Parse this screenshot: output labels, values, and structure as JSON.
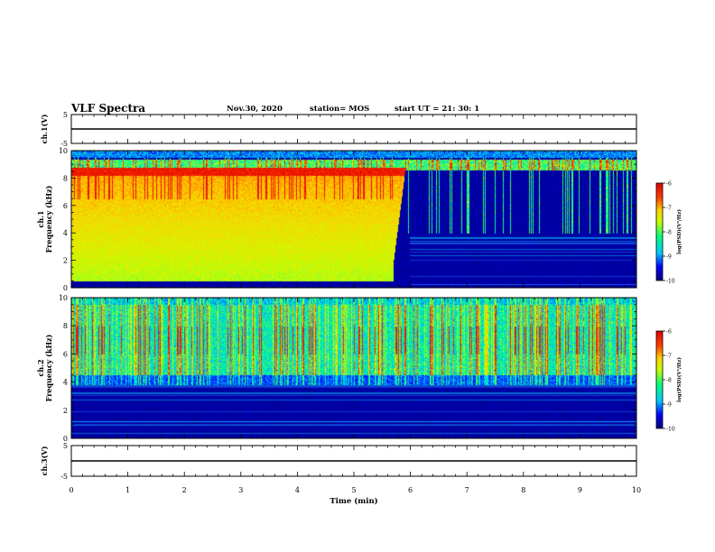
{
  "header": {
    "title": "VLF Spectra",
    "date": "Nov.30, 2020",
    "station": "station= MOS",
    "start": "start  UT  =   21: 30: 1"
  },
  "colors": {
    "spectrogram_scale": [
      "#00007a",
      "#0000ff",
      "#00c8ff",
      "#00ff80",
      "#c8ff00",
      "#ffd000",
      "#ff4000",
      "#e00000"
    ],
    "frame": "#000000"
  },
  "chart_data": [
    {
      "type": "line",
      "name": "ch1-waveform",
      "ylabel": "ch.1(V)",
      "ylim": [
        -5,
        5
      ],
      "yticks": [
        "5",
        "-5"
      ],
      "x": [
        0,
        10
      ],
      "y": [
        0,
        0
      ]
    },
    {
      "type": "heatmap",
      "name": "ch1-spectrogram",
      "ylabel": "ch.1\nFrequency (kHz)",
      "xlim": [
        0,
        10
      ],
      "ylim": [
        0,
        10
      ],
      "yticks": [
        "0",
        "2",
        "4",
        "6",
        "8",
        "10"
      ],
      "colorbar": {
        "label": "log(PSD)(V²/Hz)",
        "range": [
          -10,
          -6
        ],
        "ticks": [
          "-6",
          "-7",
          "-8",
          "-9",
          "-10"
        ]
      },
      "description_regions": {
        "noise_band_until_min": 5.7,
        "noise_band_khz": [
          0.5,
          8.8
        ],
        "quiet_after_min": 5.9
      }
    },
    {
      "type": "heatmap",
      "name": "ch2-spectrogram",
      "ylabel": "ch.2\nFrequency (kHz)",
      "xlim": [
        0,
        10
      ],
      "ylim": [
        0,
        10
      ],
      "yticks": [
        "0",
        "2",
        "4",
        "6",
        "8",
        "10"
      ],
      "colorbar": {
        "label": "log(PSD)(V²/Hz)",
        "range": [
          -10,
          -6
        ],
        "ticks": [
          "-6",
          "-7",
          "-8",
          "-9",
          "-10"
        ]
      },
      "description_regions": {
        "emission_band_khz": [
          4.5,
          9.5
        ]
      }
    },
    {
      "type": "line",
      "name": "ch3-waveform",
      "ylabel": "ch.3(V)",
      "ylim": [
        -5,
        5
      ],
      "yticks": [
        "5",
        "-5"
      ],
      "xlabel": "Time  (min)",
      "xticks": [
        "0",
        "1",
        "2",
        "3",
        "4",
        "5",
        "6",
        "7",
        "8",
        "9",
        "10"
      ],
      "x": [
        0,
        10
      ],
      "y": [
        0,
        0
      ]
    }
  ]
}
